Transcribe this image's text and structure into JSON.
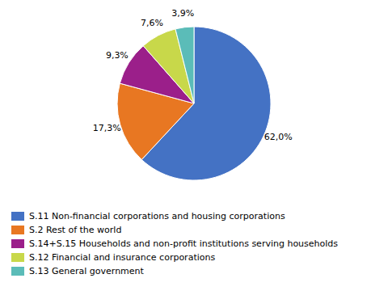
{
  "chart_data": {
    "type": "pie",
    "categories": [
      "S.11 Non-financial corporations and housing corporations",
      "S.2 Rest of the world",
      "S.14+S.15 Households and non-profit institutions serving households",
      "S.12 Financial and insurance corporations",
      "S.13 General government"
    ],
    "values": [
      62.0,
      17.3,
      9.3,
      7.6,
      3.9
    ],
    "value_labels": [
      "62,0%",
      "17,3%",
      "9,3%",
      "7,6%",
      "3,9%"
    ],
    "colors": [
      "#4472C4",
      "#E87722",
      "#9B1F8A",
      "#C8D84A",
      "#5BBCB8"
    ],
    "data_labels": true,
    "legend": "bottom"
  }
}
